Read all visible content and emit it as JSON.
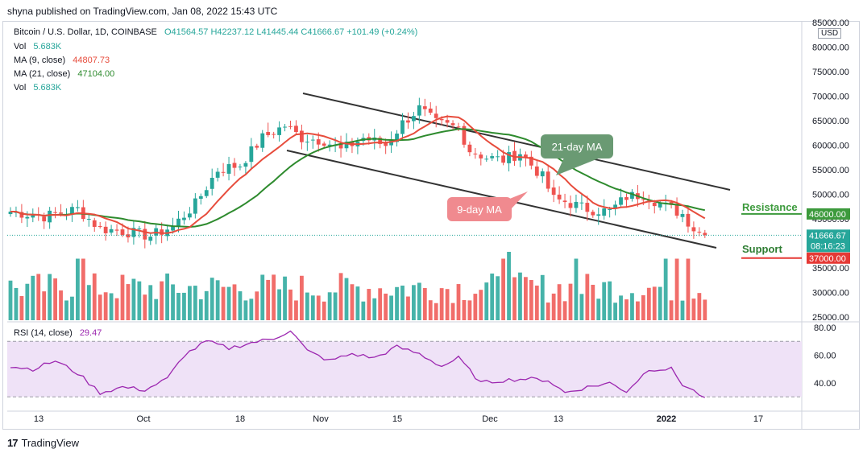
{
  "header": {
    "publisher_line": "shyna published on TradingView.com, Jan 08, 2022 15:43 UTC"
  },
  "legend": {
    "symbol": "Bitcoin / U.S. Dollar, 1D, COINBASE",
    "ohlc": "O41564.57  H42237.12  L41445.44  C41666.67  +101.49 (+0.24%)",
    "vol1_label": "Vol",
    "vol1_value": "5.683K",
    "ma9_label": "MA (9, close)",
    "ma9_value": "44807.73",
    "ma21_label": "MA (21, close)",
    "ma21_value": "47104.00",
    "vol2_label": "Vol",
    "vol2_value": "5.683K"
  },
  "currency_badge": "USD",
  "rsi_legend": {
    "label": "RSI (14, close)",
    "value": "29.47"
  },
  "footer": {
    "brand": "TradingView",
    "logo_mark": "17"
  },
  "annotations": {
    "ma21_callout": "21-day MA",
    "ma9_callout": "9-day MA",
    "resistance_label": "Resistance",
    "support_label": "Support"
  },
  "colors": {
    "up": "#26a69a",
    "down": "#ef5350",
    "ma9": "#e74c3c",
    "ma21": "#2e8b2e",
    "rsi": "#9c27b0",
    "rsi_band": "#efe2f7",
    "channel": "#333333",
    "callout_ma21": "#6a9a73",
    "callout_ma9": "#f08a8f",
    "resistance_tag": "#3c9a3c",
    "support_tag": "#e53935"
  },
  "chart_data": {
    "type": "candlestick",
    "price_axis": {
      "min": 25000,
      "max": 85000,
      "ticks": [
        "85000.00",
        "80000.00",
        "75000.00",
        "70000.00",
        "65000.00",
        "60000.00",
        "55000.00",
        "50000.00",
        "45000.00",
        "40000.00",
        "35000.00",
        "30000.00",
        "25000.00"
      ]
    },
    "x_ticks": [
      "13",
      "Oct",
      "18",
      "Nov",
      "15",
      "Dec",
      "13",
      "2022",
      "17"
    ],
    "last_price": {
      "price": "41666.67",
      "countdown": "08:16:23"
    },
    "levels": [
      {
        "name": "Resistance",
        "price": "46000.00",
        "value": 46000
      },
      {
        "name": "Support",
        "price": "37000.00",
        "value": 37000
      }
    ],
    "price_anchors": {
      "description": "Approximate daily close in USD at chart x-index (0 = Sep 5, 2021, ~111 days)",
      "points": [
        [
          0,
          46500
        ],
        [
          6,
          45500
        ],
        [
          12,
          47000
        ],
        [
          16,
          43000
        ],
        [
          20,
          42500
        ],
        [
          25,
          41500
        ],
        [
          29,
          43500
        ],
        [
          33,
          48000
        ],
        [
          37,
          55000
        ],
        [
          41,
          56000
        ],
        [
          45,
          61500
        ],
        [
          49,
          64000
        ],
        [
          52,
          61500
        ],
        [
          56,
          61000
        ],
        [
          59,
          59000
        ],
        [
          63,
          61500
        ],
        [
          67,
          60000
        ],
        [
          70,
          64500
        ],
        [
          73,
          67500
        ],
        [
          76,
          64500
        ],
        [
          80,
          63500
        ],
        [
          82,
          59000
        ],
        [
          85,
          57500
        ],
        [
          88,
          57000
        ],
        [
          91,
          58500
        ],
        [
          93,
          56000
        ],
        [
          95,
          53500
        ],
        [
          97,
          49000
        ],
        [
          99,
          48500
        ],
        [
          103,
          47000
        ],
        [
          107,
          46500
        ],
        [
          110,
          49500
        ],
        [
          113,
          50000
        ],
        [
          117,
          47500
        ],
        [
          120,
          46000
        ],
        [
          122,
          43000
        ],
        [
          124,
          41666
        ]
      ]
    },
    "ma9_value": 44807.73,
    "ma21_value": 47104.0,
    "rsi": {
      "axis_ticks": [
        "80.00",
        "60.00",
        "40.00"
      ],
      "upper_band": 70,
      "lower_band": 30,
      "last": 29.47,
      "anchors": [
        [
          0,
          52
        ],
        [
          4,
          50
        ],
        [
          8,
          56
        ],
        [
          12,
          47
        ],
        [
          16,
          33
        ],
        [
          20,
          37
        ],
        [
          24,
          35
        ],
        [
          28,
          43
        ],
        [
          31,
          60
        ],
        [
          35,
          70
        ],
        [
          39,
          65
        ],
        [
          43,
          69
        ],
        [
          47,
          72
        ],
        [
          50,
          78
        ],
        [
          53,
          63
        ],
        [
          57,
          56
        ],
        [
          61,
          61
        ],
        [
          65,
          58
        ],
        [
          69,
          66
        ],
        [
          73,
          61
        ],
        [
          77,
          52
        ],
        [
          80,
          58
        ],
        [
          84,
          40
        ],
        [
          88,
          42
        ],
        [
          92,
          43
        ],
        [
          96,
          42
        ],
        [
          99,
          33
        ],
        [
          103,
          37
        ],
        [
          107,
          40
        ],
        [
          110,
          34
        ],
        [
          114,
          50
        ],
        [
          118,
          50
        ],
        [
          120,
          39
        ],
        [
          124,
          29.47
        ]
      ]
    },
    "volume_scale_note": "relative volume bars, 0-1"
  }
}
